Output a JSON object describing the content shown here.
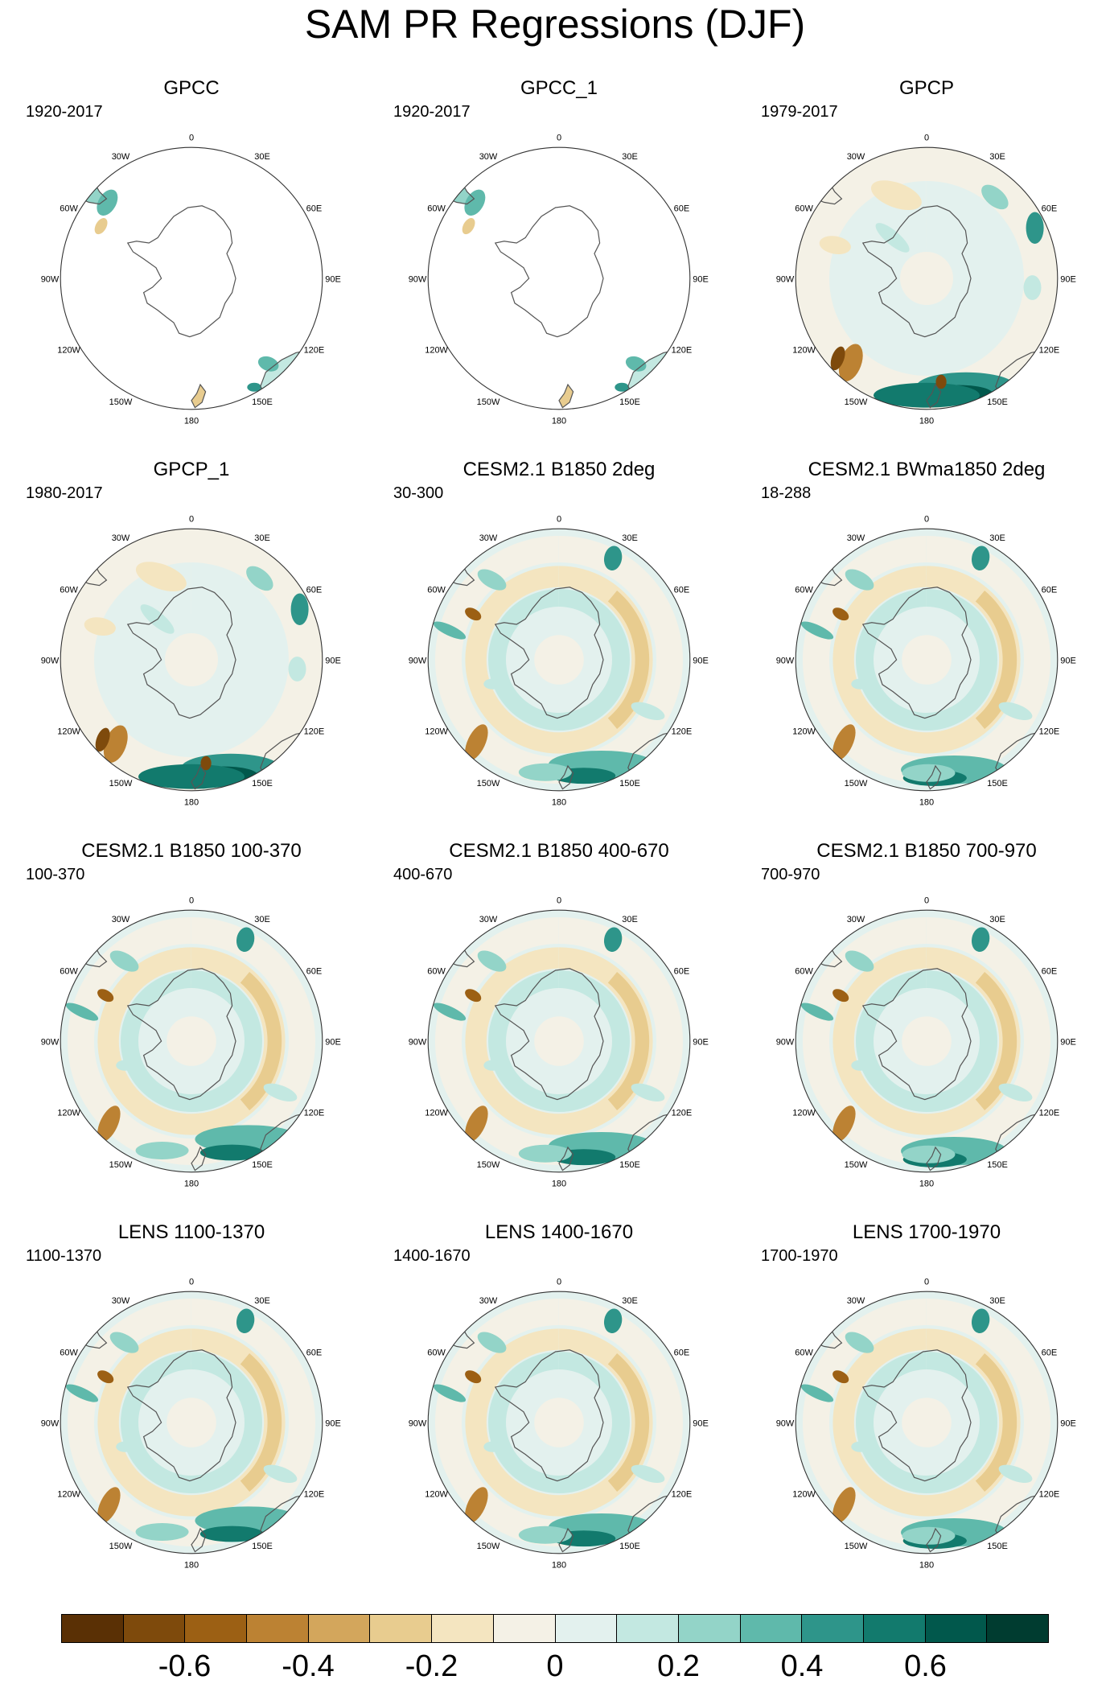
{
  "title": "SAM PR Regressions (DJF)",
  "lon_labels": [
    "0",
    "30E",
    "60E",
    "90E",
    "120E",
    "150E",
    "180",
    "150W",
    "120W",
    "90W",
    "60W",
    "30W"
  ],
  "panels": [
    {
      "title": "GPCC",
      "period": "1920-2017",
      "field": "land"
    },
    {
      "title": "GPCC_1",
      "period": "1920-2017",
      "field": "land"
    },
    {
      "title": "GPCP",
      "period": "1979-2017",
      "field": "obs"
    },
    {
      "title": "GPCP_1",
      "period": "1980-2017",
      "field": "obs"
    },
    {
      "title": "CESM2.1 B1850 2deg",
      "period": "30-300",
      "field": "model"
    },
    {
      "title": "CESM2.1 BWma1850 2deg",
      "period": "18-288",
      "field": "model"
    },
    {
      "title": "CESM2.1 B1850 100-370",
      "period": "100-370",
      "field": "model"
    },
    {
      "title": "CESM2.1 B1850 400-670",
      "period": "400-670",
      "field": "model"
    },
    {
      "title": "CESM2.1 B1850 700-970",
      "period": "700-970",
      "field": "model"
    },
    {
      "title": "LENS 1100-1370",
      "period": "1100-1370",
      "field": "model"
    },
    {
      "title": "LENS 1400-1670",
      "period": "1400-1670",
      "field": "model"
    },
    {
      "title": "LENS 1700-1970",
      "period": "1700-1970",
      "field": "model"
    }
  ],
  "colorbar": {
    "colors": [
      "#5a3005",
      "#7e4a0c",
      "#9c6014",
      "#bc8233",
      "#d3a65c",
      "#e8cc8f",
      "#f4e5c0",
      "#f4f1e6",
      "#e3f1ee",
      "#c3e8e1",
      "#93d4c8",
      "#5fb9ab",
      "#2e958a",
      "#127a6d",
      "#01584c",
      "#003c30"
    ],
    "labels": [
      "-0.6",
      "-0.4",
      "-0.2",
      "0",
      "0.2",
      "0.4",
      "0.6"
    ],
    "label_values": [
      -0.6,
      -0.4,
      -0.2,
      0,
      0.2,
      0.4,
      0.6
    ],
    "range": [
      -0.8,
      0.8
    ]
  }
}
